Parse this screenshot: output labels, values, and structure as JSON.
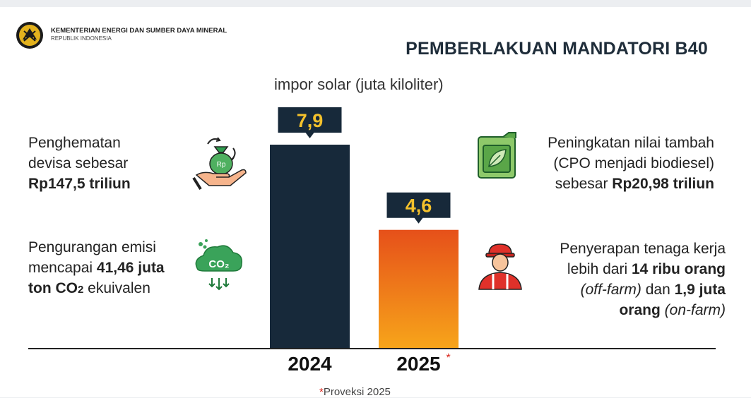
{
  "header": {
    "ministry_name": "KEMENTERIAN ENERGI DAN SUMBER DAYA MINERAL",
    "ministry_sub": "REPUBLIK INDONESIA",
    "title": "PEMBERLAKUAN MANDATORI B40"
  },
  "chart_data": {
    "type": "bar",
    "title": "impor solar (juta kiloliter)",
    "categories": [
      "2024",
      "2025"
    ],
    "values": [
      7.9,
      4.6
    ],
    "value_labels": [
      "7,9",
      "4,6"
    ],
    "category_marks": [
      "",
      "*"
    ],
    "colors": [
      "#17293a",
      "#f07a10"
    ],
    "ylim": [
      0,
      8.2
    ],
    "grid": false,
    "legend": "none"
  },
  "left_panel": {
    "savings": {
      "line1": "Penghematan",
      "line2": "devisa sebesar",
      "amount": "Rp147,5 triliun"
    },
    "emission": {
      "line1": "Pengurangan emisi",
      "line2_pre": "mencapai ",
      "line2_bold": "41,46 juta",
      "line3_bold": "ton CO",
      "line3_sub": "2",
      "line3_post": " ekuivalen"
    }
  },
  "right_panel": {
    "value_added": {
      "line1": "Peningkatan nilai tambah",
      "line2": "(CPO menjadi biodiesel)",
      "line3_pre": "sebesar ",
      "line3_bold": "Rp20,98 triliun"
    },
    "labor": {
      "line1": "Penyerapan tenaga kerja",
      "line2_pre": "lebih dari ",
      "line2_bold": "14 ribu orang",
      "line3_italic": "(off-farm)",
      "line3_mid": " dan ",
      "line3_bold": "1,9 juta",
      "line4_bold": "orang ",
      "line4_italic": "(on-farm)"
    }
  },
  "icons": {
    "logo": "ministry-emblem-icon",
    "savings": "money-bag-hand-icon",
    "emission": "co2-cloud-icon",
    "value_added": "biodiesel-jerrycan-icon",
    "labor": "worker-helmet-icon"
  },
  "footnote": {
    "star": "*",
    "text": "Proveksi 2025"
  }
}
